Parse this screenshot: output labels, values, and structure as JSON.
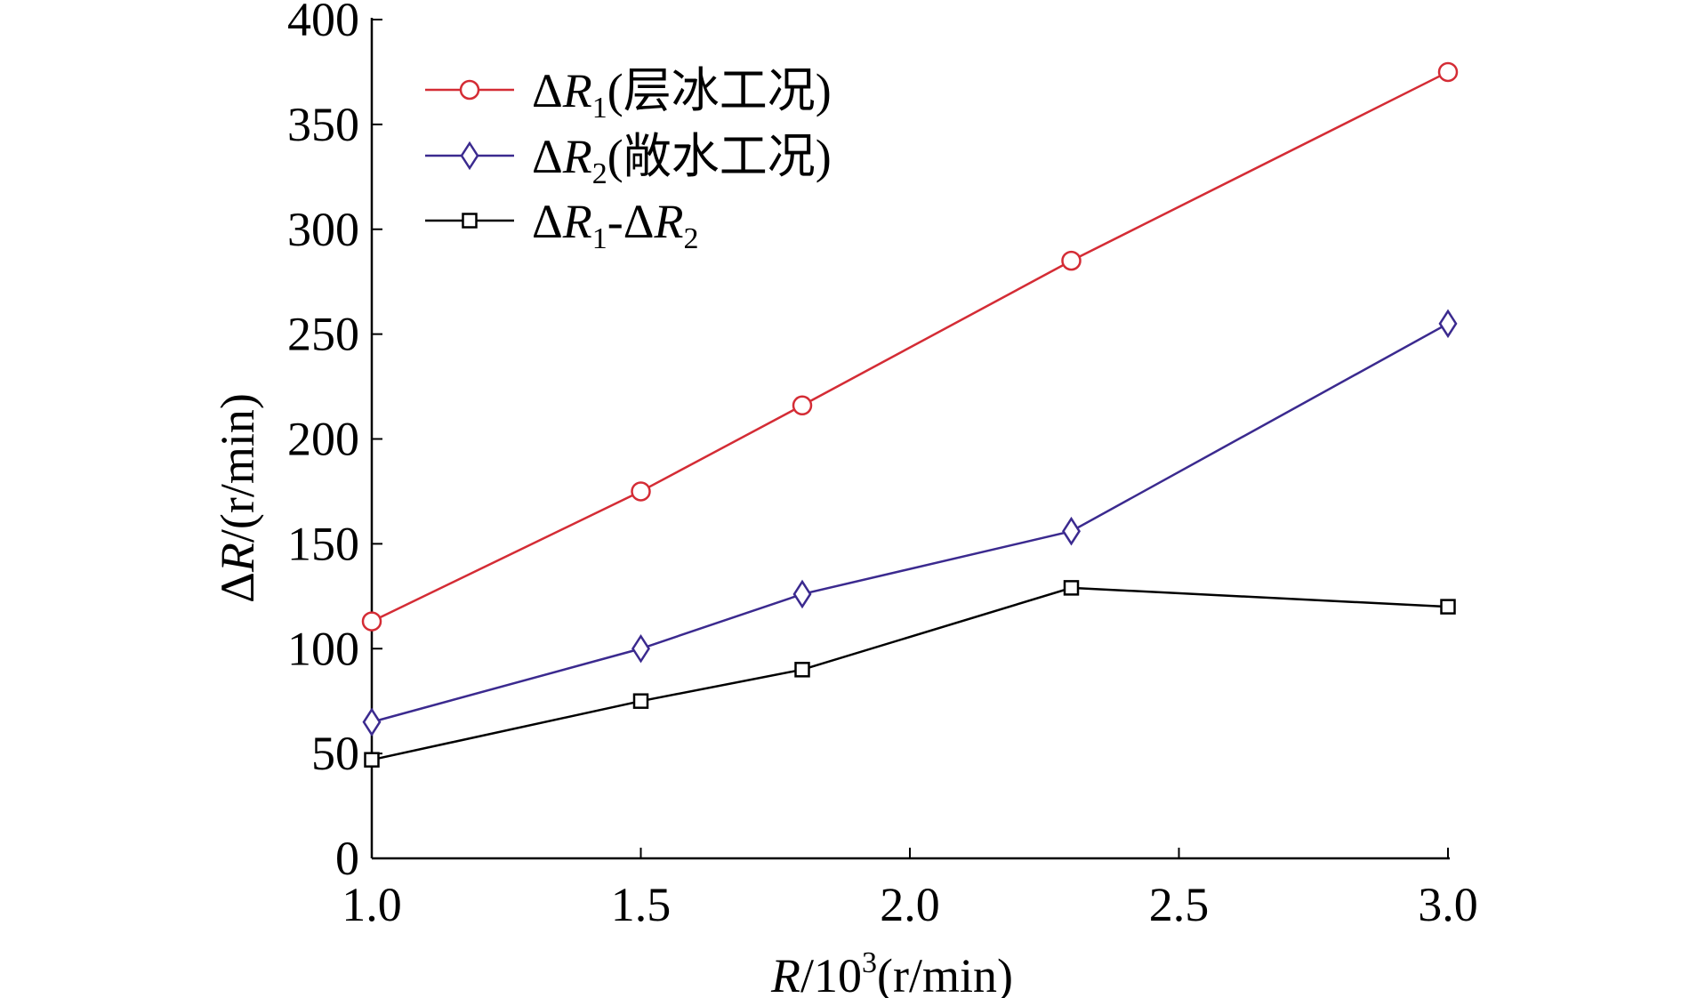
{
  "chart_data": {
    "type": "line",
    "x": [
      1.0,
      1.5,
      1.8,
      2.3,
      3.0
    ],
    "series": [
      {
        "name": "ΔR1(层冰工况)",
        "name_parts": {
          "delta": "Δ",
          "var": "R",
          "sub": "1",
          "rest": "(层冰工况)"
        },
        "values": [
          113,
          175,
          216,
          285,
          375
        ],
        "color": "#d42c35",
        "marker": "circle"
      },
      {
        "name": "ΔR2(敞水工况)",
        "name_parts": {
          "delta": "Δ",
          "var": "R",
          "sub": "2",
          "rest": "(敞水工况)"
        },
        "values": [
          65,
          100,
          126,
          156,
          255
        ],
        "color": "#3b2a8f",
        "marker": "diamond"
      },
      {
        "name": "ΔR1-ΔR2",
        "name_parts": {
          "delta": "Δ",
          "var": "R",
          "sub": "1",
          "mid": "-Δ",
          "var2": "R",
          "sub2": "2"
        },
        "values": [
          47,
          75,
          90,
          129,
          120
        ],
        "color": "#000000",
        "marker": "square"
      }
    ],
    "xlim": [
      1.0,
      3.0
    ],
    "ylim": [
      0,
      400
    ],
    "xticks": [
      "1.0",
      "1.5",
      "2.0",
      "2.5",
      "3.0"
    ],
    "yticks": [
      "0",
      "50",
      "100",
      "150",
      "200",
      "250",
      "300",
      "350",
      "400"
    ],
    "xlabel": "R/10³(r/min)",
    "xlabel_parts": {
      "var": "R",
      "mid": "/10",
      "sup": "3",
      "rest": "(r/min)"
    },
    "ylabel": "ΔR/(r/min)",
    "ylabel_parts": {
      "delta": "Δ",
      "var": "R",
      "rest": "/(r/min)"
    },
    "legend_position": "top-left",
    "grid": false
  }
}
